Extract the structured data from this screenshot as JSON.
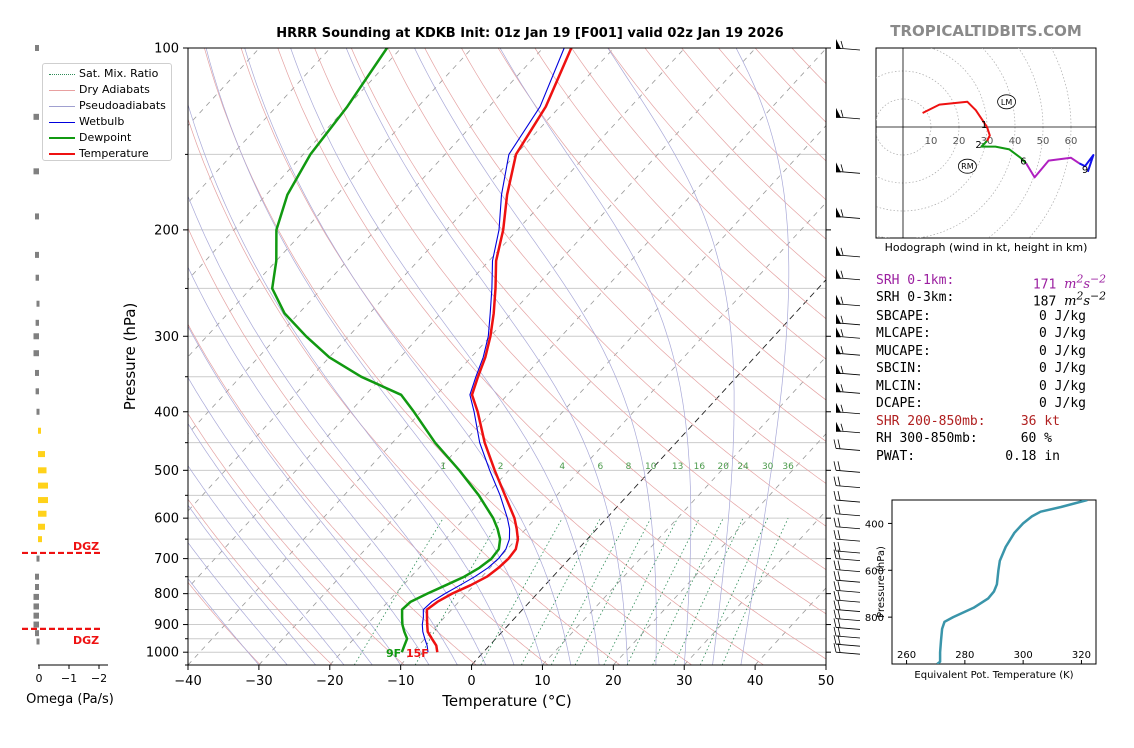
{
  "header": {
    "title": "HRRR Sounding at KDKB Init: 01z Jan 19 [F001] valid 02z Jan 19 2026",
    "brand": "TROPICALTIDBITS.COM"
  },
  "legend": [
    {
      "label": "Sat. Mix. Ratio",
      "color": "#2e8b57",
      "style": "dotted"
    },
    {
      "label": "Dry Adiabats",
      "color": "#e8a0a0",
      "style": "solid"
    },
    {
      "label": "Pseudoadiabats",
      "color": "#a0a0d0",
      "style": "solid"
    },
    {
      "label": "Wetbulb",
      "color": "#0000dd",
      "style": "solid"
    },
    {
      "label": "Dewpoint",
      "color": "#119911",
      "style": "thick"
    },
    {
      "label": "Temperature",
      "color": "#ee1111",
      "style": "thick"
    }
  ],
  "params": [
    {
      "label": "SRH 0-1km:",
      "value": "171",
      "unit": "m2s-2",
      "color": "#9b1fa0"
    },
    {
      "label": "SRH 0-3km:",
      "value": "187",
      "unit": "m2s-2",
      "color": "#000000"
    },
    {
      "label": "SBCAPE:",
      "value": "0 J/kg",
      "color": "#000000"
    },
    {
      "label": "MLCAPE:",
      "value": "0 J/kg",
      "color": "#000000"
    },
    {
      "label": "MUCAPE:",
      "value": "0 J/kg",
      "color": "#000000"
    },
    {
      "label": "SBCIN:",
      "value": "0 J/kg",
      "color": "#000000"
    },
    {
      "label": "MLCIN:",
      "value": "0 J/kg",
      "color": "#000000"
    },
    {
      "label": "DCAPE:",
      "value": "0 J/kg",
      "color": "#000000"
    },
    {
      "label": "SHR 200-850mb:",
      "value": "36 kt",
      "color": "#b02020"
    },
    {
      "label": "RH 300-850mb:",
      "value": "60 %",
      "color": "#000000"
    },
    {
      "label": "PWAT:",
      "value": "0.18 in",
      "color": "#000000"
    }
  ],
  "surface_labels": {
    "dewpoint": "9F",
    "temperature": "15F"
  },
  "dgz_label": "DGZ",
  "chart_data": [
    {
      "type": "line",
      "name": "skew-t",
      "xlabel": "Temperature (°C)",
      "ylabel": "Pressure (hPa)",
      "xlim": [
        -40,
        50
      ],
      "ylim": [
        1050,
        100
      ],
      "yscale": "log",
      "xticks": [
        "−40",
        "−30",
        "−20",
        "−10",
        "0",
        "10",
        "20",
        "30",
        "40",
        "50"
      ],
      "yticks": [
        "100",
        "200",
        "300",
        "400",
        "500",
        "600",
        "700",
        "800",
        "900",
        "1000"
      ],
      "mixing_ratio_labels": [
        "1",
        "2",
        "4",
        "6",
        "8",
        "10",
        "13",
        "16",
        "20",
        "24",
        "30",
        "36"
      ],
      "series": [
        {
          "name": "Temperature",
          "color": "#ee1111",
          "points": [
            [
              1000,
              -6.5
            ],
            [
              975,
              -7.5
            ],
            [
              950,
              -9
            ],
            [
              925,
              -10.5
            ],
            [
              900,
              -11.5
            ],
            [
              875,
              -12.5
            ],
            [
              850,
              -13.5
            ],
            [
              825,
              -13
            ],
            [
              800,
              -12
            ],
            [
              775,
              -10.5
            ],
            [
              750,
              -9.3
            ],
            [
              725,
              -8.8
            ],
            [
              700,
              -8.6
            ],
            [
              675,
              -8.8
            ],
            [
              650,
              -9.8
            ],
            [
              625,
              -11.3
            ],
            [
              600,
              -13
            ],
            [
              550,
              -17.3
            ],
            [
              500,
              -22
            ],
            [
              450,
              -27
            ],
            [
              400,
              -32
            ],
            [
              375,
              -35
            ],
            [
              350,
              -36.5
            ],
            [
              325,
              -38
            ],
            [
              300,
              -40
            ],
            [
              275,
              -42.5
            ],
            [
              250,
              -45.5
            ],
            [
              225,
              -49
            ],
            [
              200,
              -52
            ],
            [
              175,
              -56
            ],
            [
              150,
              -60
            ],
            [
              125,
              -62
            ],
            [
              100,
              -66
            ]
          ]
        },
        {
          "name": "Wetbulb",
          "color": "#0000dd",
          "points": [
            [
              1000,
              -7.8
            ],
            [
              975,
              -8.8
            ],
            [
              950,
              -10
            ],
            [
              925,
              -11.2
            ],
            [
              900,
              -12.2
            ],
            [
              875,
              -13
            ],
            [
              850,
              -14
            ],
            [
              825,
              -13.8
            ],
            [
              800,
              -13
            ],
            [
              775,
              -12
            ],
            [
              750,
              -11
            ],
            [
              725,
              -10.3
            ],
            [
              700,
              -10
            ],
            [
              675,
              -10.2
            ],
            [
              650,
              -11
            ],
            [
              625,
              -12.3
            ],
            [
              600,
              -14
            ],
            [
              550,
              -18
            ],
            [
              500,
              -22.7
            ],
            [
              450,
              -27.7
            ],
            [
              400,
              -32.5
            ],
            [
              375,
              -35.3
            ],
            [
              350,
              -36.8
            ],
            [
              325,
              -38.3
            ],
            [
              300,
              -40.3
            ],
            [
              275,
              -43
            ],
            [
              250,
              -46
            ],
            [
              225,
              -49.5
            ],
            [
              200,
              -52.6
            ],
            [
              175,
              -56.8
            ],
            [
              150,
              -61
            ],
            [
              125,
              -62.8
            ],
            [
              100,
              -67
            ]
          ]
        },
        {
          "name": "Dewpoint",
          "color": "#119911",
          "points": [
            [
              1000,
              -11.5
            ],
            [
              975,
              -12
            ],
            [
              950,
              -12.5
            ],
            [
              925,
              -13.8
            ],
            [
              900,
              -15
            ],
            [
              875,
              -16
            ],
            [
              850,
              -17
            ],
            [
              825,
              -16.8
            ],
            [
              800,
              -15.5
            ],
            [
              775,
              -14
            ],
            [
              750,
              -12.5
            ],
            [
              725,
              -11.5
            ],
            [
              700,
              -11
            ],
            [
              675,
              -11.2
            ],
            [
              650,
              -12.3
            ],
            [
              625,
              -14
            ],
            [
              600,
              -16
            ],
            [
              550,
              -21
            ],
            [
              500,
              -27
            ],
            [
              450,
              -34
            ],
            [
              400,
              -41
            ],
            [
              375,
              -45
            ],
            [
              350,
              -53
            ],
            [
              325,
              -60
            ],
            [
              300,
              -66
            ],
            [
              275,
              -72
            ],
            [
              250,
              -77
            ],
            [
              225,
              -80
            ],
            [
              200,
              -84
            ],
            [
              175,
              -87
            ],
            [
              150,
              -89
            ],
            [
              125,
              -90
            ],
            [
              100,
              -92
            ]
          ]
        }
      ]
    },
    {
      "type": "line",
      "name": "hodograph",
      "xlabel": "Hodograph (wind in kt, height in km)",
      "ring_labels": [
        "10",
        "20",
        "30",
        "40",
        "50",
        "60"
      ],
      "height_labels": [
        {
          "km": "1",
          "u": 29,
          "v": 1
        },
        {
          "km": "2",
          "u": 27,
          "v": -6
        },
        {
          "km": "6",
          "u": 43,
          "v": -12
        },
        {
          "km": "9",
          "u": 65,
          "v": -15
        }
      ],
      "storm_motion": [
        {
          "label": "LM",
          "u": 37,
          "v": 9
        },
        {
          "label": "RM",
          "u": 23,
          "v": -14
        }
      ],
      "series": [
        {
          "color": "#ee1111",
          "points": [
            [
              7,
              5
            ],
            [
              13,
              8
            ],
            [
              23,
              9
            ],
            [
              26,
              6
            ],
            [
              28,
              3
            ],
            [
              30,
              0
            ],
            [
              31,
              -3
            ],
            [
              30,
              -5
            ]
          ]
        },
        {
          "color": "#119911",
          "points": [
            [
              30,
              -5
            ],
            [
              28,
              -7
            ],
            [
              33,
              -7
            ],
            [
              38,
              -8
            ],
            [
              42,
              -11
            ],
            [
              44,
              -13
            ]
          ]
        },
        {
          "color": "#b020c0",
          "points": [
            [
              44,
              -13
            ],
            [
              47,
              -18
            ],
            [
              52,
              -12
            ],
            [
              60,
              -11
            ],
            [
              63,
              -13
            ]
          ]
        },
        {
          "color": "#1010ee",
          "points": [
            [
              63,
              -13
            ],
            [
              65,
              -14
            ],
            [
              68,
              -10
            ],
            [
              66,
              -16
            ]
          ]
        }
      ]
    },
    {
      "type": "line",
      "name": "theta-e",
      "xlabel": "Equivalent Pot. Temperature (K)",
      "ylabel": "Pressure (hPa)",
      "xlim": [
        255,
        325
      ],
      "ylim": [
        1000,
        300
      ],
      "xticks": [
        "260",
        "280",
        "300",
        "320"
      ],
      "yticks": [
        "400",
        "600",
        "800"
      ],
      "series": [
        {
          "name": "Theta-E",
          "color": "#3a95aa",
          "points": [
            [
              1000,
              270.5
            ],
            [
              990,
              271.5
            ],
            [
              950,
              271.5
            ],
            [
              900,
              271.8
            ],
            [
              850,
              272.2
            ],
            [
              820,
              273
            ],
            [
              800,
              276
            ],
            [
              760,
              283
            ],
            [
              720,
              288
            ],
            [
              690,
              290
            ],
            [
              660,
              291
            ],
            [
              600,
              291.5
            ],
            [
              560,
              292
            ],
            [
              500,
              294
            ],
            [
              440,
              297
            ],
            [
              400,
              300
            ],
            [
              370,
              303
            ],
            [
              350,
              306
            ],
            [
              330,
              313
            ],
            [
              300,
              322
            ]
          ]
        }
      ]
    },
    {
      "type": "bar",
      "name": "omega",
      "xlabel": "Omega (Pa/s)",
      "xticks": [
        "0",
        "−1",
        "−2"
      ],
      "bars": [
        {
          "p": 100,
          "omega": 0.1,
          "color": "#808080"
        },
        {
          "p": 130,
          "omega": 0.15,
          "color": "#808080"
        },
        {
          "p": 160,
          "omega": 0.15,
          "color": "#808080"
        },
        {
          "p": 190,
          "omega": 0.1,
          "color": "#808080"
        },
        {
          "p": 220,
          "omega": 0.1,
          "color": "#808080"
        },
        {
          "p": 240,
          "omega": 0.08,
          "color": "#808080"
        },
        {
          "p": 265,
          "omega": 0.05,
          "color": "#808080"
        },
        {
          "p": 285,
          "omega": 0.08,
          "color": "#808080"
        },
        {
          "p": 300,
          "omega": 0.15,
          "color": "#808080"
        },
        {
          "p": 320,
          "omega": 0.15,
          "color": "#808080"
        },
        {
          "p": 345,
          "omega": 0.1,
          "color": "#808080"
        },
        {
          "p": 370,
          "omega": 0.08,
          "color": "#808080"
        },
        {
          "p": 400,
          "omega": 0.05,
          "color": "#808080"
        },
        {
          "p": 430,
          "omega": -0.05,
          "color": "#ffd21a"
        },
        {
          "p": 470,
          "omega": -0.2,
          "color": "#ffd21a"
        },
        {
          "p": 500,
          "omega": -0.25,
          "color": "#ffd21a"
        },
        {
          "p": 530,
          "omega": -0.3,
          "color": "#ffd21a"
        },
        {
          "p": 560,
          "omega": -0.3,
          "color": "#ffd21a"
        },
        {
          "p": 590,
          "omega": -0.25,
          "color": "#ffd21a"
        },
        {
          "p": 620,
          "omega": -0.2,
          "color": "#ffd21a"
        },
        {
          "p": 650,
          "omega": -0.1,
          "color": "#ffd21a"
        },
        {
          "p": 700,
          "omega": 0.05,
          "color": "#808080"
        },
        {
          "p": 750,
          "omega": 0.1,
          "color": "#808080"
        },
        {
          "p": 780,
          "omega": 0.1,
          "color": "#808080"
        },
        {
          "p": 810,
          "omega": 0.15,
          "color": "#808080"
        },
        {
          "p": 840,
          "omega": 0.15,
          "color": "#808080"
        },
        {
          "p": 870,
          "omega": 0.15,
          "color": "#808080"
        },
        {
          "p": 900,
          "omega": 0.15,
          "color": "#808080"
        },
        {
          "p": 930,
          "omega": 0.1,
          "color": "#808080"
        },
        {
          "p": 960,
          "omega": 0.05,
          "color": "#808080"
        }
      ],
      "dgz_top_hp": 685,
      "dgz_bottom_hp": 915
    }
  ]
}
